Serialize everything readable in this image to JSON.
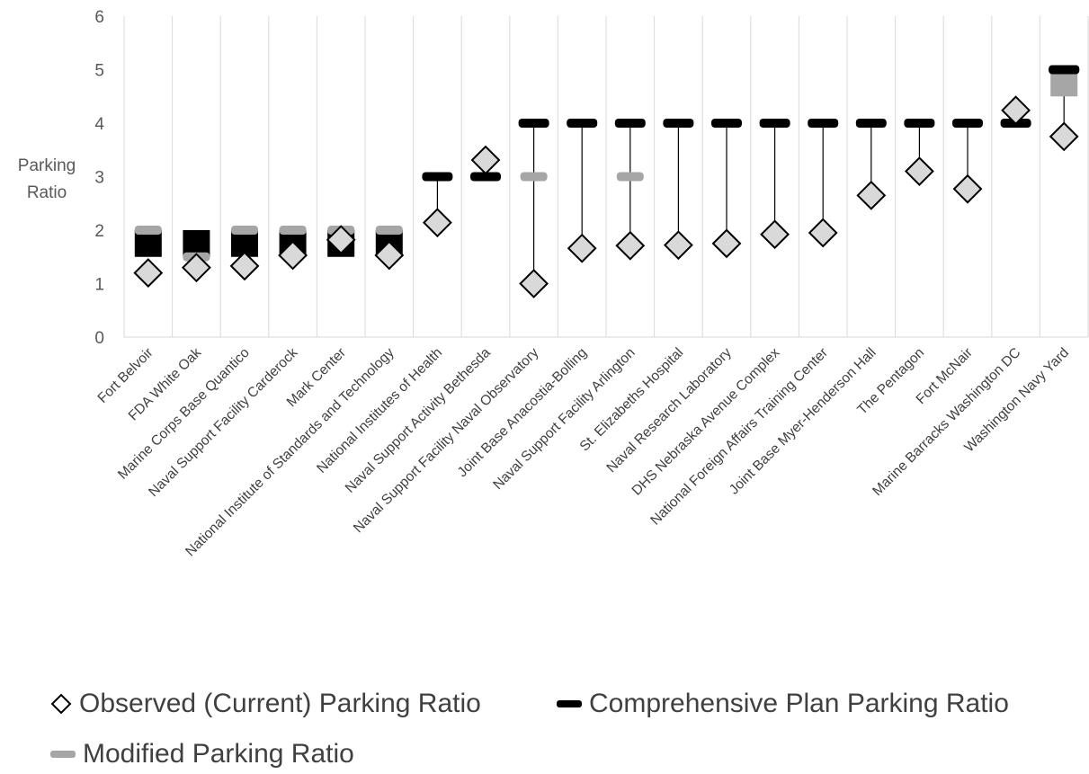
{
  "chart_data": {
    "type": "scatter",
    "ylabel": "Parking Ratio",
    "ylim": [
      0,
      6
    ],
    "yticks": [
      "0",
      "1",
      "2",
      "3",
      "4",
      "5",
      "6"
    ],
    "categories": [
      "Fort Belvoir",
      "FDA White Oak",
      "Marine Corps Base Quantico",
      "Naval Support Facility Carderock",
      "Mark Center",
      "National Institute of Standards and Technology",
      "National Institutes of Health",
      "Naval Support Activity Bethesda",
      "Naval Support Facility Naval Observatory",
      "Joint Base Anacostia-Bolling",
      "Naval Support Facility Arlington",
      "St. Elizabeths Hospital",
      "Naval Research Laboratory",
      "DHS Nebraska Avenue Complex",
      "National Foreign Affairs Training Center",
      "Joint Base Myer-Henderson Hall",
      "The Pentagon",
      "Fort McNair",
      "Marine Barracks Washington DC",
      "Washington Navy Yard"
    ],
    "series": [
      {
        "name": "Observed (Current) Parking Ratio",
        "values": [
          1.2,
          1.3,
          1.33,
          1.53,
          1.82,
          1.53,
          2.14,
          3.31,
          1.0,
          1.66,
          1.71,
          1.72,
          1.75,
          1.92,
          1.95,
          2.65,
          3.1,
          2.77,
          4.24,
          3.75
        ]
      },
      {
        "name": "Comprehensive Plan Parking Ratio",
        "values": [
          [
            1.5,
            2.0
          ],
          [
            1.5,
            2.0
          ],
          [
            1.5,
            2.0
          ],
          [
            1.5,
            2.0
          ],
          [
            1.5,
            2.0
          ],
          [
            1.5,
            2.0
          ],
          [
            3.0,
            3.0
          ],
          [
            3.0,
            3.0
          ],
          [
            4.0,
            4.0
          ],
          [
            4.0,
            4.0
          ],
          [
            4.0,
            4.0
          ],
          [
            4.0,
            4.0
          ],
          [
            4.0,
            4.0
          ],
          [
            4.0,
            4.0
          ],
          [
            4.0,
            4.0
          ],
          [
            4.0,
            4.0
          ],
          [
            4.0,
            4.0
          ],
          [
            4.0,
            4.0
          ],
          [
            4.0,
            4.0
          ],
          [
            5.0,
            5.0
          ]
        ]
      },
      {
        "name": "Modified Parking Ratio",
        "values": [
          [
            2.0,
            2.0
          ],
          [
            1.5,
            1.5
          ],
          [
            2.0,
            2.0
          ],
          [
            2.0,
            2.0
          ],
          [
            2.0,
            2.0
          ],
          [
            2.0,
            2.0
          ],
          null,
          null,
          [
            3.0,
            3.0
          ],
          null,
          [
            3.0,
            3.0
          ],
          null,
          null,
          null,
          null,
          null,
          null,
          null,
          null,
          [
            4.5,
            5.0
          ]
        ]
      }
    ],
    "colors": {
      "observed_fill": "#d9d9d9",
      "observed_stroke": "#000000",
      "comprehensive": "#000000",
      "modified": "#a6a6a6",
      "grid": "#d9d9d9"
    },
    "legend_position": "bottom"
  }
}
